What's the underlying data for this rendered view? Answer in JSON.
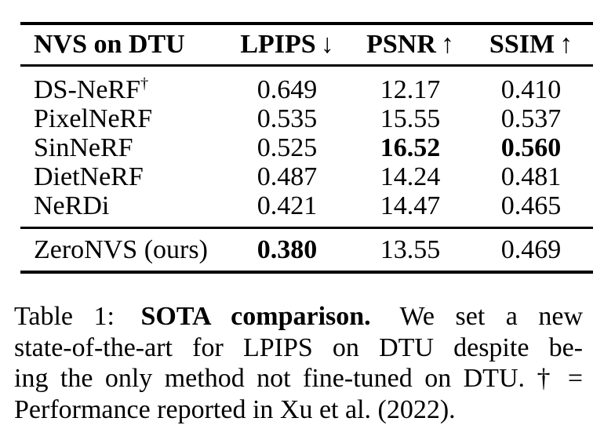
{
  "page": {
    "background": "#ffffff",
    "text_color": "#000000"
  },
  "table": {
    "columns": [
      {
        "label": "NVS on DTU",
        "arrow": ""
      },
      {
        "label": "LPIPS",
        "arrow": "↓"
      },
      {
        "label": "PSNR",
        "arrow": "↑"
      },
      {
        "label": "SSIM",
        "arrow": "↑"
      }
    ],
    "rows": [
      {
        "method": "DS-NeRF",
        "method_sup": "†",
        "lpips": "0.649",
        "psnr": "12.17",
        "ssim": "0.410"
      },
      {
        "method": "PixelNeRF",
        "method_sup": "",
        "lpips": "0.535",
        "psnr": "15.55",
        "ssim": "0.537"
      },
      {
        "method": "SinNeRF",
        "method_sup": "",
        "lpips": "0.525",
        "psnr": "16.52",
        "ssim": "0.560"
      },
      {
        "method": "DietNeRF",
        "method_sup": "",
        "lpips": "0.487",
        "psnr": "14.24",
        "ssim": "0.481"
      },
      {
        "method": "NeRDi",
        "method_sup": "",
        "lpips": "0.421",
        "psnr": "14.47",
        "ssim": "0.465"
      }
    ],
    "footer": {
      "method": "ZeroNVS (ours)",
      "lpips": "0.380",
      "psnr": "13.55",
      "ssim": "0.469"
    }
  },
  "caption": {
    "label": "Table 1:",
    "title": "SOTA comparison.",
    "line1_rest": "We set a new",
    "line2": "state-of-the-art for LPIPS on DTU despite be-",
    "line3": "ing the only method not fine-tuned on DTU. † =",
    "line4": "Performance reported in Xu et al. (2022)."
  }
}
